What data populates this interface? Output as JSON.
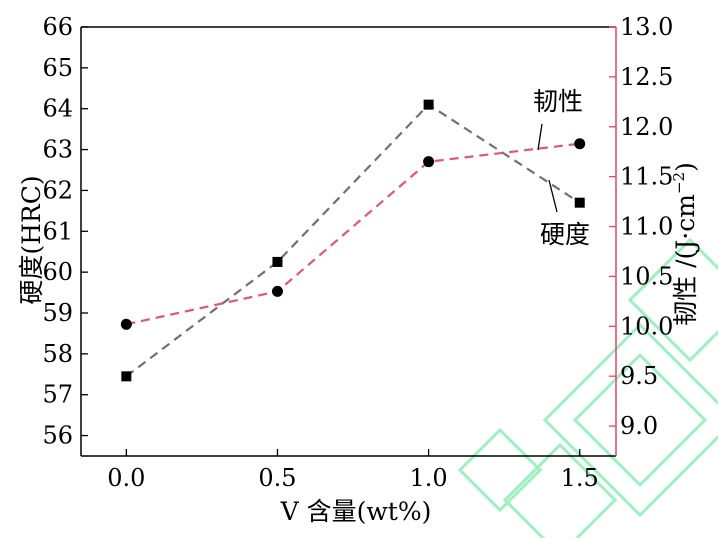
{
  "chart_data": {
    "type": "line",
    "title": "",
    "xlabel": "V 含量(wt%)",
    "ylabel_left": "硬度(HRC)",
    "ylabel_right_text": "韧性 /(J·cm",
    "ylabel_right_sup": "−2",
    "ylabel_right_close": ")",
    "x": [
      0.0,
      0.5,
      1.0,
      1.5
    ],
    "x_ticks": [
      "0.0",
      "0.5",
      "1.0",
      "1.5"
    ],
    "xlim": [
      -0.15,
      1.62
    ],
    "ylim_left": [
      55.5,
      66
    ],
    "ylim_right": [
      8.7,
      13.0
    ],
    "y_ticks_left": [
      "56",
      "57",
      "58",
      "59",
      "60",
      "61",
      "62",
      "63",
      "64",
      "65",
      "66"
    ],
    "y_ticks_right": [
      "9.0",
      "9.5",
      "10.0",
      "10.5",
      "11.0",
      "11.5",
      "12.0",
      "12.5",
      "13.0"
    ],
    "left_axis_color": "#000000",
    "right_axis_color": "#e8436a",
    "series": [
      {
        "name": "硬度",
        "axis": "left",
        "values": [
          57.45,
          60.25,
          64.1,
          61.7
        ],
        "marker": "square",
        "line_color": "#707070",
        "line_style": "dashed"
      },
      {
        "name": "韧性",
        "axis": "right",
        "values": [
          10.02,
          10.35,
          11.65,
          11.83
        ],
        "marker": "circle",
        "line_color": "#e05579",
        "line_style": "dashed"
      }
    ],
    "annotations": [
      {
        "text": "韧性",
        "series": "韧性"
      },
      {
        "text": "硬度",
        "series": "硬度"
      }
    ],
    "watermark_color": "#9df0bf"
  }
}
